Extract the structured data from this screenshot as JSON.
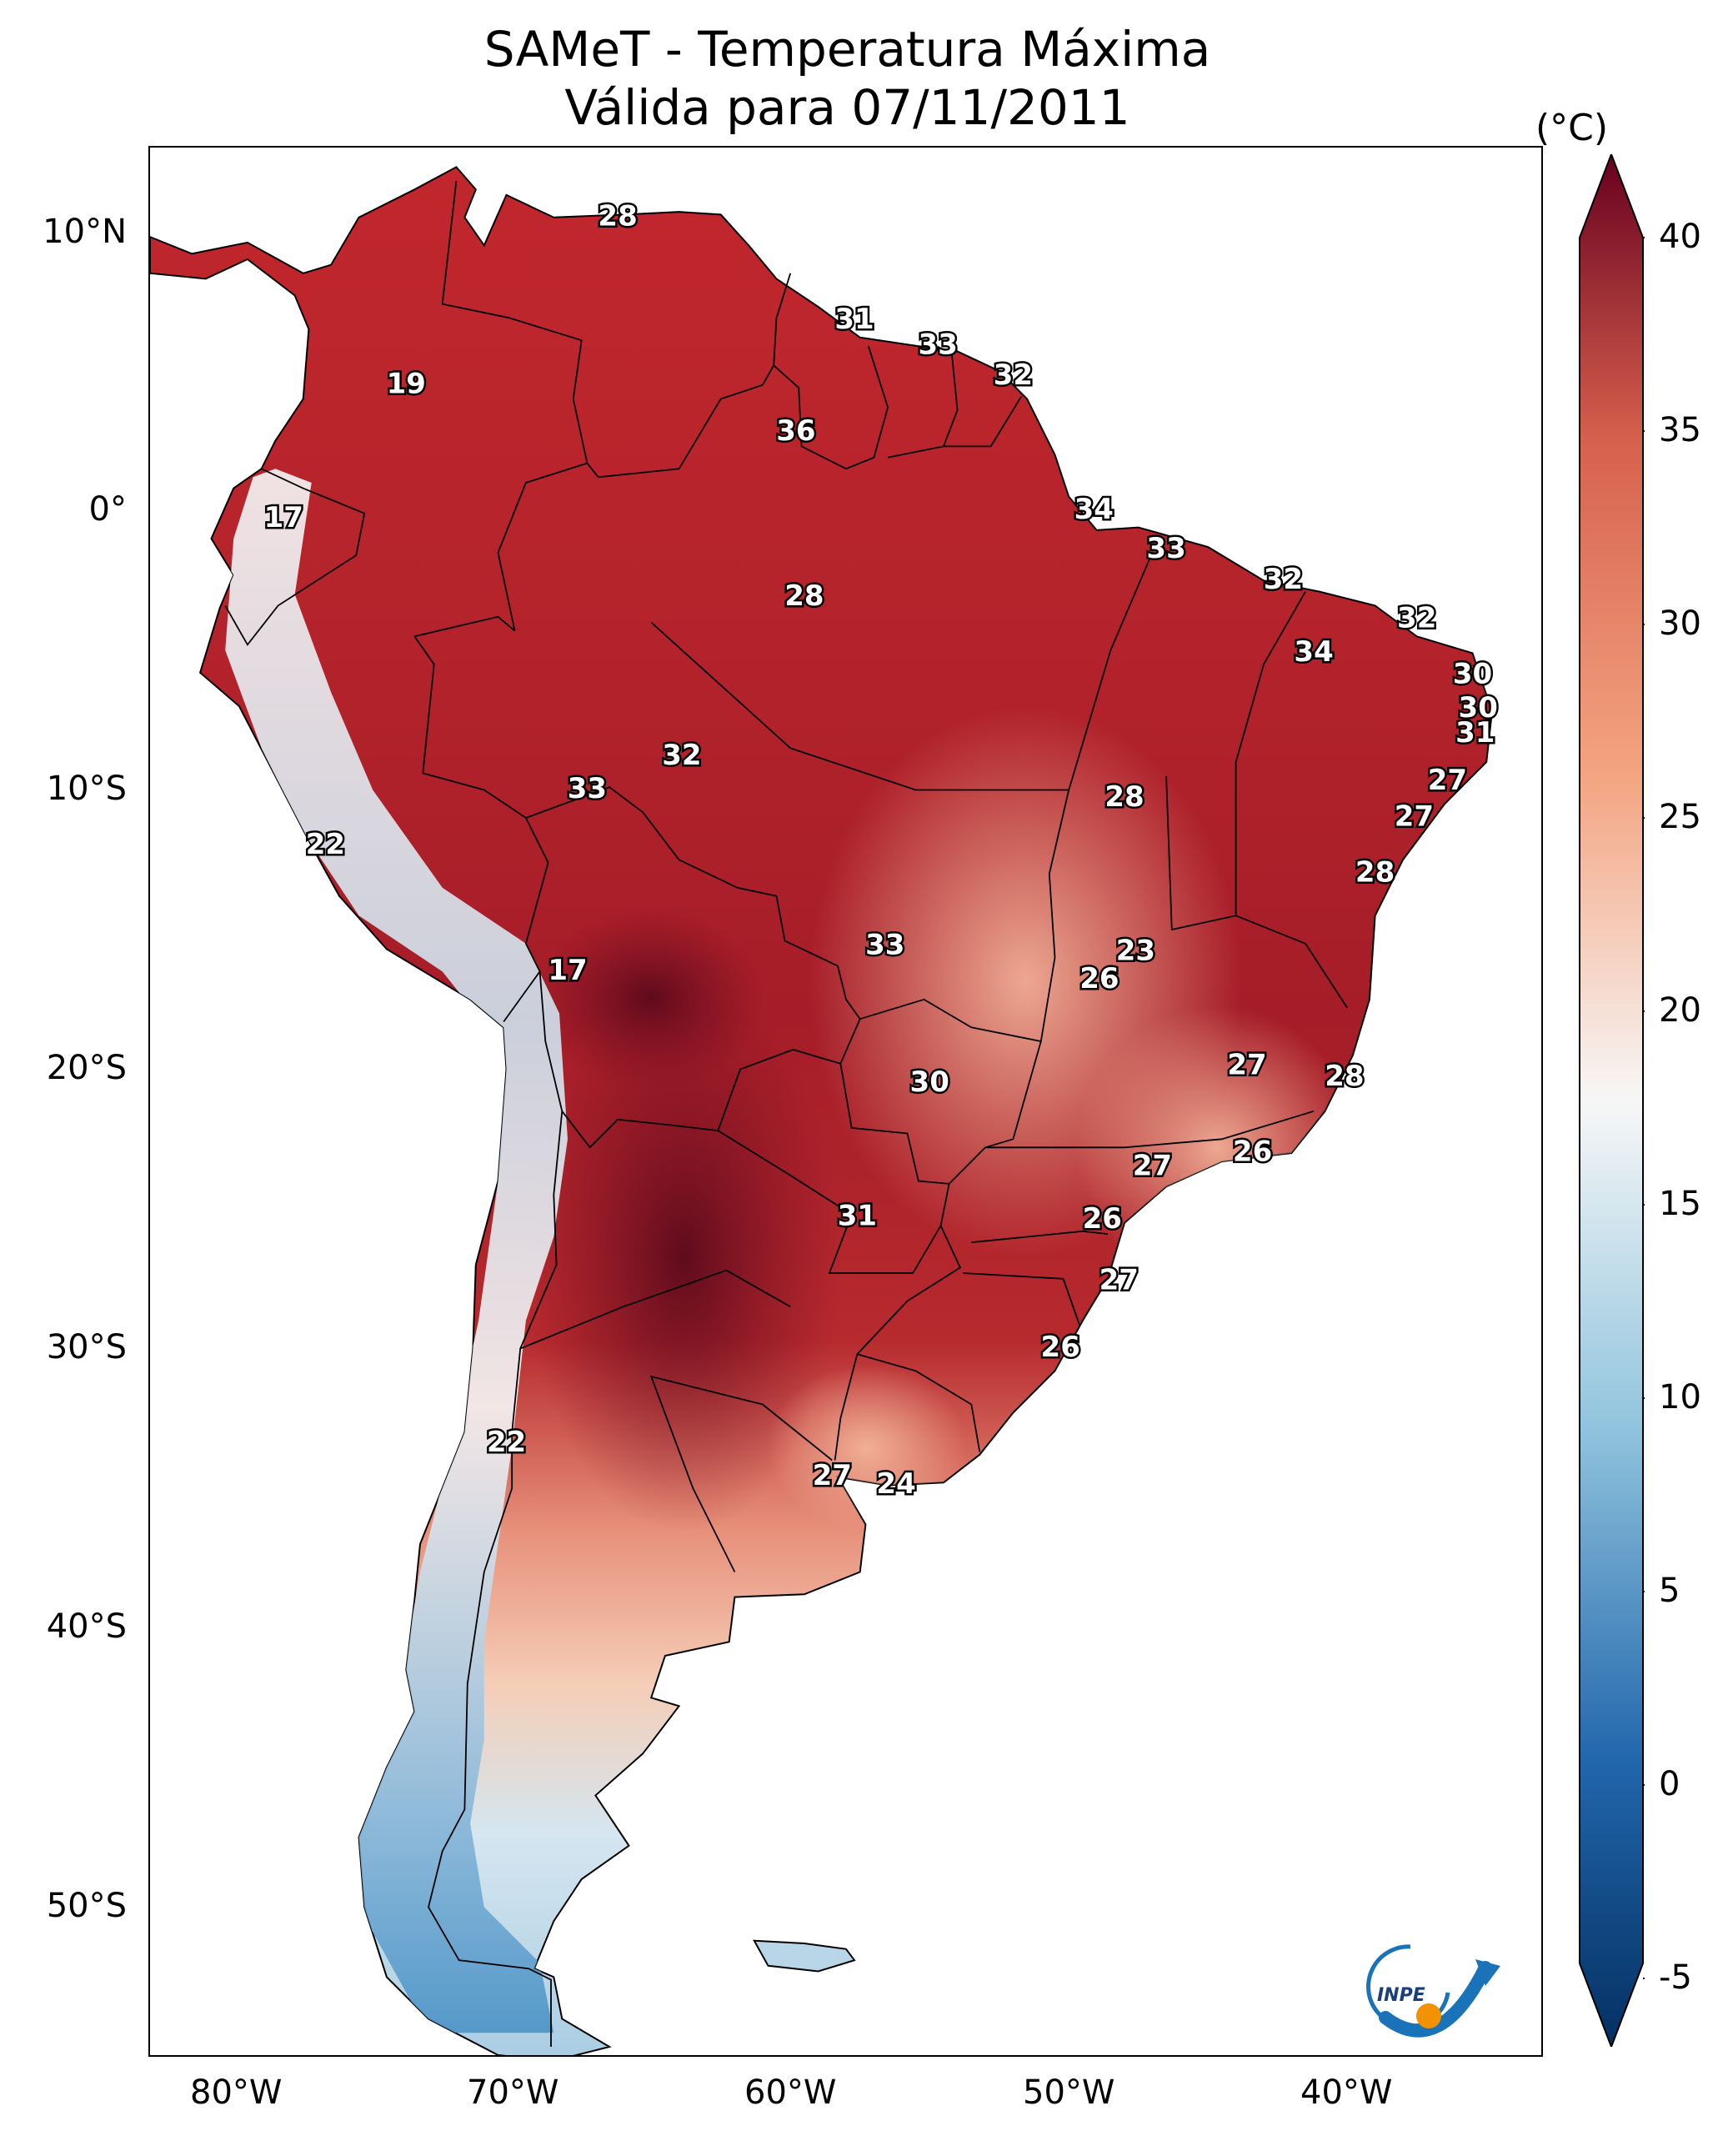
{
  "title": {
    "line1": "SAMeT - Temperatura Máxima",
    "line2": "Válida para 07/11/2011"
  },
  "axes": {
    "lat_labels": [
      "10°N",
      "0°",
      "10°S",
      "20°S",
      "30°S",
      "40°S",
      "50°S"
    ],
    "lon_labels": [
      "80°W",
      "70°W",
      "60°W",
      "50°W",
      "40°W"
    ]
  },
  "colorbar": {
    "unit": "(°C)",
    "ticks": [
      "40",
      "35",
      "30",
      "25",
      "20",
      "15",
      "10",
      "5",
      "0",
      "-5"
    ],
    "range": [
      -5,
      40
    ],
    "colors": {
      "hot": "#67001f",
      "warm": "#d6604d",
      "mild": "#f4a582",
      "neutral": "#f7f7f7",
      "cool": "#92c5de",
      "cold": "#2166ac",
      "coldest": "#053061"
    }
  },
  "logo": {
    "text": "INPE"
  },
  "stations": [
    {
      "value": "28",
      "lon": -66.2,
      "lat": 10.5
    },
    {
      "value": "19",
      "lon": -73.8,
      "lat": 4.5
    },
    {
      "value": "31",
      "lon": -57.7,
      "lat": 6.8
    },
    {
      "value": "33",
      "lon": -54.7,
      "lat": 5.9
    },
    {
      "value": "32",
      "lon": -52.0,
      "lat": 4.8
    },
    {
      "value": "36",
      "lon": -59.8,
      "lat": 2.8
    },
    {
      "value": "17",
      "lon": -78.2,
      "lat": -0.3
    },
    {
      "value": "34",
      "lon": -49.1,
      "lat": 0.0
    },
    {
      "value": "33",
      "lon": -46.5,
      "lat": -1.4
    },
    {
      "value": "32",
      "lon": -42.3,
      "lat": -2.5
    },
    {
      "value": "28",
      "lon": -59.5,
      "lat": -3.1
    },
    {
      "value": "32",
      "lon": -37.5,
      "lat": -3.9
    },
    {
      "value": "34",
      "lon": -41.2,
      "lat": -5.1
    },
    {
      "value": "30",
      "lon": -35.5,
      "lat": -5.9
    },
    {
      "value": "30",
      "lon": -35.3,
      "lat": -7.1
    },
    {
      "value": "31",
      "lon": -35.4,
      "lat": -8.0
    },
    {
      "value": "32",
      "lon": -63.9,
      "lat": -8.8
    },
    {
      "value": "27",
      "lon": -36.4,
      "lat": -9.7
    },
    {
      "value": "33",
      "lon": -67.3,
      "lat": -10.0
    },
    {
      "value": "28",
      "lon": -48.0,
      "lat": -10.3
    },
    {
      "value": "27",
      "lon": -37.6,
      "lat": -11.0
    },
    {
      "value": "22",
      "lon": -76.7,
      "lat": -12.0
    },
    {
      "value": "28",
      "lon": -39.0,
      "lat": -13.0
    },
    {
      "value": "33",
      "lon": -56.6,
      "lat": -15.6
    },
    {
      "value": "23",
      "lon": -47.6,
      "lat": -15.8
    },
    {
      "value": "26",
      "lon": -48.9,
      "lat": -16.8
    },
    {
      "value": "17",
      "lon": -68.0,
      "lat": -16.5
    },
    {
      "value": "27",
      "lon": -43.6,
      "lat": -19.9
    },
    {
      "value": "28",
      "lon": -40.1,
      "lat": -20.3
    },
    {
      "value": "30",
      "lon": -55.0,
      "lat": -20.5
    },
    {
      "value": "26",
      "lon": -43.4,
      "lat": -23.0
    },
    {
      "value": "27",
      "lon": -47.0,
      "lat": -23.5
    },
    {
      "value": "31",
      "lon": -57.6,
      "lat": -25.3
    },
    {
      "value": "26",
      "lon": -48.8,
      "lat": -25.4
    },
    {
      "value": "27",
      "lon": -48.2,
      "lat": -27.6
    },
    {
      "value": "26",
      "lon": -50.3,
      "lat": -30.0
    },
    {
      "value": "22",
      "lon": -70.2,
      "lat": -33.4
    },
    {
      "value": "27",
      "lon": -58.5,
      "lat": -34.6
    },
    {
      "value": "24",
      "lon": -56.2,
      "lat": -34.9
    }
  ]
}
